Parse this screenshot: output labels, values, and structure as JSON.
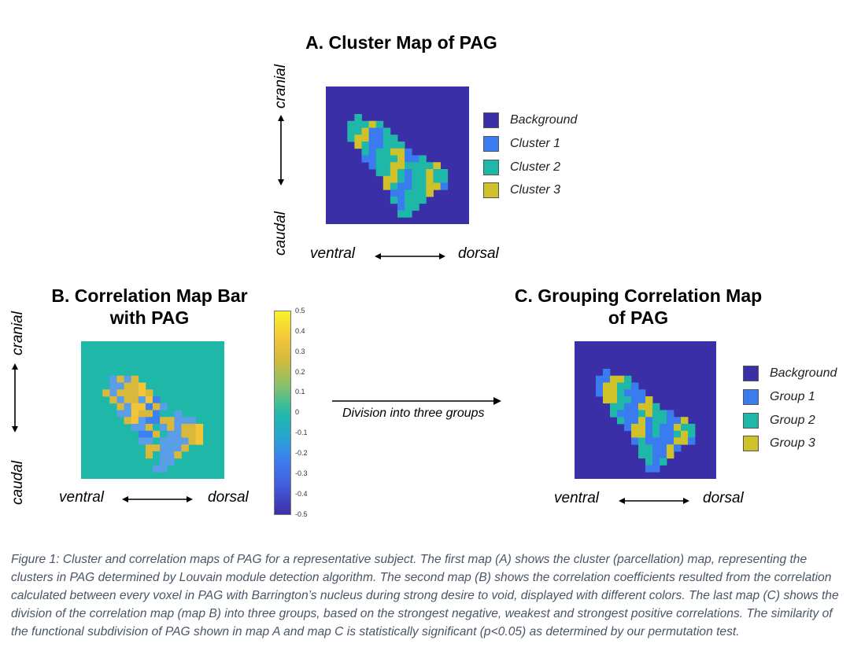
{
  "panel_a": {
    "title": "A. Cluster Map of PAG",
    "axis_top": "cranial",
    "axis_bottom": "caudal",
    "axis_left": "ventral",
    "axis_right": "dorsal",
    "legend": [
      {
        "label": "Background",
        "color": "#3a2fa6"
      },
      {
        "label": "Cluster 1",
        "color": "#3a7cf0"
      },
      {
        "label": "Cluster 2",
        "color": "#1fb7a8"
      },
      {
        "label": "Cluster 3",
        "color": "#cfc12a"
      }
    ]
  },
  "panel_b": {
    "title_line1": "B. Correlation Map Bar",
    "title_line2": "with PAG",
    "axis_top": "cranial",
    "axis_bottom": "caudal",
    "axis_left": "ventral",
    "axis_right": "dorsal",
    "colorbar_ticks": [
      "0.5",
      "0.4",
      "0.3",
      "0.2",
      "0.1",
      "0",
      "-0.1",
      "-0.2",
      "-0.3",
      "-0.4",
      "-0.5"
    ]
  },
  "arrow_label": "Division into three groups",
  "panel_c": {
    "title_line1": "C. Grouping Correlation Map",
    "title_line2": "of PAG",
    "axis_left": "ventral",
    "axis_right": "dorsal",
    "legend": [
      {
        "label": "Background",
        "color": "#3a2fa6"
      },
      {
        "label": "Group 1",
        "color": "#3a7cf0"
      },
      {
        "label": "Group 2",
        "color": "#1fb7a8"
      },
      {
        "label": "Group 3",
        "color": "#cfc12a"
      }
    ]
  },
  "caption": "Figure 1: Cluster and correlation maps of PAG for a representative subject. The first map (A) shows the cluster (parcellation) map, representing the clusters in PAG determined by Louvain module detection algorithm. The second map (B) shows the correlation coefficients resulted from the correlation calculated between every voxel in PAG with Barrington’s nucleus during strong desire to void, displayed with different colors. The last map (C) shows the division of the correlation map (map B) into three groups, based on the strongest negative, weakest and strongest positive correlations. The similarity of the functional subdivision of PAG shown in map A and map C is statistically significant (p<0.05) as determined by our permutation test."
}
